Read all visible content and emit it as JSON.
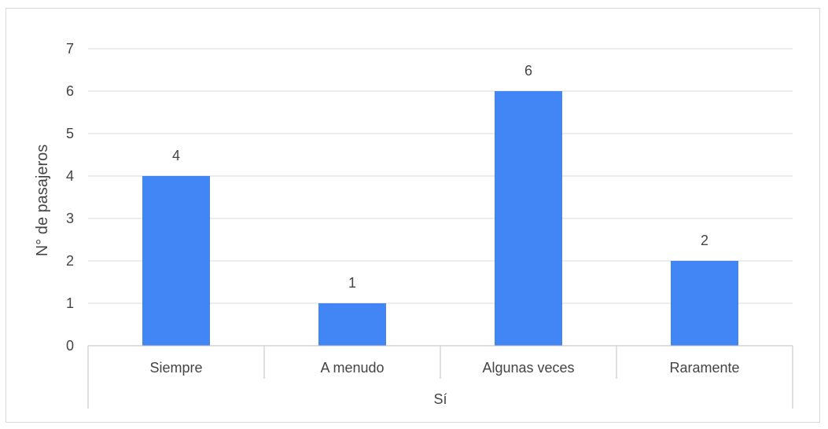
{
  "chart_data": {
    "type": "bar",
    "categories": [
      "Siempre",
      "A menudo",
      "Algunas veces",
      "Raramente"
    ],
    "group_label": "Sí",
    "values": [
      4,
      1,
      6,
      2
    ],
    "data_labels": [
      "4",
      "1",
      "6",
      "2"
    ],
    "title": "",
    "xlabel": "",
    "ylabel": "N° de pasajeros",
    "ylim": [
      0,
      7
    ],
    "yticks": [
      "0",
      "1",
      "2",
      "3",
      "4",
      "5",
      "6",
      "7"
    ],
    "grid": true,
    "bar_color": "#4285f4",
    "grid_color": "#d9d9d9",
    "text_color": "#444444"
  }
}
